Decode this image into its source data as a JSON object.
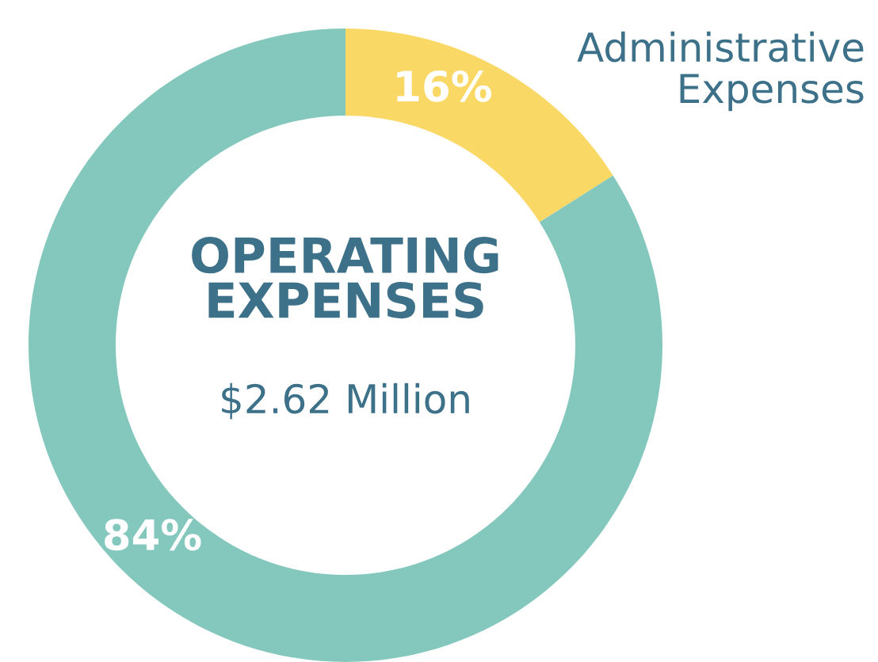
{
  "chart_data": {
    "type": "donut",
    "title": "OPERATING\nEXPENSES",
    "annotations": [
      "$2.62 Million"
    ],
    "categories": [
      "Administrative Expenses",
      null
    ],
    "values": [
      16,
      84
    ],
    "colors": [
      "#f9d866",
      "#84c8bd"
    ],
    "value_labels": [
      "16%",
      "84%"
    ]
  }
}
